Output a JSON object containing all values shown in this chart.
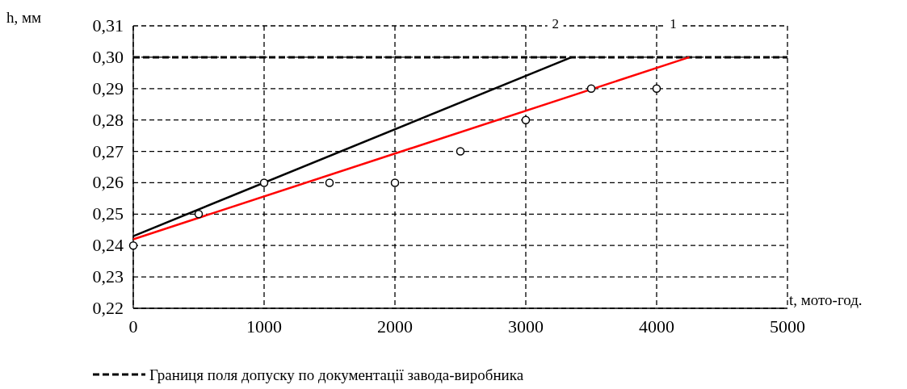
{
  "chart_data": {
    "type": "line",
    "xlabel": "t, мото-год.",
    "ylabel": "h, мм",
    "xlim": [
      0,
      5000
    ],
    "xticks": [
      0,
      1000,
      2000,
      3000,
      4000,
      5000
    ],
    "ylim": [
      0.22,
      0.31
    ],
    "yticks": [
      {
        "value": 0.22,
        "label": "0,22"
      },
      {
        "value": 0.23,
        "label": "0,23"
      },
      {
        "value": 0.24,
        "label": "0,24"
      },
      {
        "value": 0.25,
        "label": "0,25"
      },
      {
        "value": 0.26,
        "label": "0,26"
      },
      {
        "value": 0.27,
        "label": "0,27"
      },
      {
        "value": 0.28,
        "label": "0,28"
      },
      {
        "value": 0.29,
        "label": "0,29"
      },
      {
        "value": 0.3,
        "label": "0,30"
      },
      {
        "value": 0.31,
        "label": "0,31"
      }
    ],
    "grid": true,
    "legend": "bottom",
    "ref_lines": [
      {
        "axis": "y",
        "value": 0.3,
        "label": "Границя поля допуску по документації завода-виробника",
        "color": "#000000",
        "line_style": "dashed"
      }
    ],
    "series": [
      {
        "name": "1",
        "color": "#ff0000",
        "x": [
          0,
          4250
        ],
        "values": [
          0.242,
          0.3
        ]
      },
      {
        "name": "2",
        "color": "#000000",
        "x": [
          0,
          3350
        ],
        "values": [
          0.243,
          0.3
        ]
      },
      {
        "type": "scatter",
        "marker": "circle",
        "color": "#000000",
        "x": [
          0,
          500,
          1000,
          1500,
          2000,
          2500,
          3000,
          3500,
          4000
        ],
        "values": [
          0.24,
          0.25,
          0.26,
          0.26,
          0.26,
          0.27,
          0.28,
          0.29,
          0.29
        ]
      }
    ]
  }
}
